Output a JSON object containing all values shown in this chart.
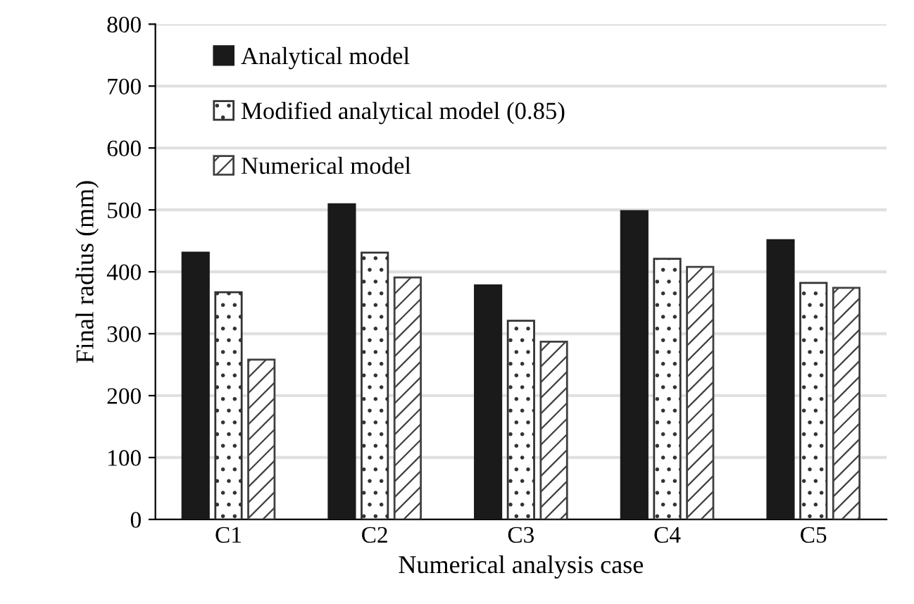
{
  "chart_data": {
    "type": "bar",
    "xlabel": "Numerical analysis case",
    "ylabel": "Final radius (mm)",
    "categories": [
      "C1",
      "C2",
      "C3",
      "C4",
      "C5"
    ],
    "series": [
      {
        "name": "Analytical model",
        "color": "#1a1a1a",
        "values": [
          431,
          509,
          378,
          498,
          451
        ]
      },
      {
        "name": "Modified analytical model (0.85)",
        "color": "#333333",
        "values": [
          367,
          431,
          321,
          421,
          382
        ]
      },
      {
        "name": "Numerical model",
        "color": "#404040",
        "values": [
          258,
          391,
          287,
          408,
          374
        ]
      }
    ],
    "ylim": [
      0,
      800
    ],
    "yticks": [
      0,
      100,
      200,
      300,
      400,
      500,
      600,
      700,
      800
    ],
    "grid": "y",
    "legend": "top left"
  }
}
